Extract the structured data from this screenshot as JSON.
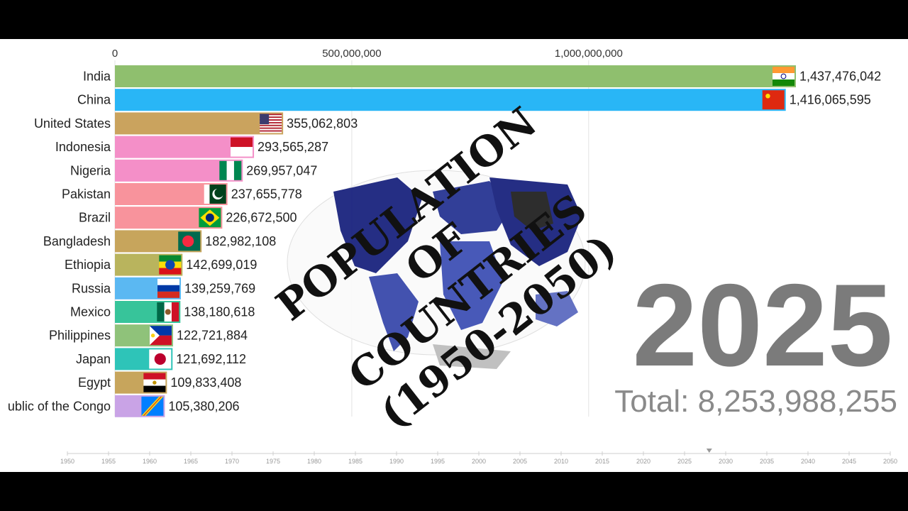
{
  "overlay_title": [
    "POPULATION",
    "OF",
    "COUNTRIES",
    "(1950-2050)"
  ],
  "year": "2025",
  "total_label": "Total: 8,253,988,255",
  "timeline": {
    "years": [
      "1950",
      "1955",
      "1960",
      "1965",
      "1970",
      "1975",
      "1980",
      "1985",
      "1990",
      "1995",
      "2000",
      "2005",
      "2010",
      "2015",
      "2020",
      "2025",
      "2030",
      "2035",
      "2040",
      "2045",
      "2050"
    ],
    "marker_year": 2028
  },
  "chart_data": {
    "type": "bar",
    "orientation": "horizontal",
    "title": "",
    "xlabel": "",
    "ylabel": "",
    "xlim": [
      0,
      1450000000
    ],
    "x_ticks": [
      0,
      500000000,
      1000000000
    ],
    "x_tick_labels": [
      "0",
      "500,000,000",
      "1,000,000,000"
    ],
    "grid": true,
    "categories": [
      "India",
      "China",
      "United States",
      "Indonesia",
      "Nigeria",
      "Pakistan",
      "Brazil",
      "Bangladesh",
      "Ethiopia",
      "Russia",
      "Mexico",
      "Philippines",
      "Japan",
      "Egypt",
      "ublic of the Congo"
    ],
    "values": [
      1437476042,
      1416065595,
      355062803,
      293565287,
      269957047,
      237655778,
      226672500,
      182982108,
      142699019,
      139259769,
      138180618,
      122721884,
      121692112,
      109833408,
      105380206
    ],
    "value_labels": [
      "1,437,476,042",
      "1,416,065,595",
      "355,062,803",
      "293,565,287",
      "269,957,047",
      "237,655,778",
      "226,672,500",
      "182,982,108",
      "142,699,019",
      "139,259,769",
      "138,180,618",
      "122,721,884",
      "121,692,112",
      "109,833,408",
      "105,380,206"
    ],
    "colors": [
      "#8fbf6e",
      "#29b6f6",
      "#caa35e",
      "#f48fc8",
      "#f48fc8",
      "#f8939c",
      "#f8939c",
      "#c7a55c",
      "#b9b45d",
      "#5bb8f2",
      "#37c49a",
      "#8fc27a",
      "#2ec4b8",
      "#c7a55c",
      "#c9a3e6"
    ],
    "flags": [
      "india-flag",
      "china-flag",
      "usa-flag",
      "indonesia-flag",
      "nigeria-flag",
      "pakistan-flag",
      "brazil-flag",
      "bangladesh-flag",
      "ethiopia-flag",
      "russia-flag",
      "mexico-flag",
      "philippines-flag",
      "japan-flag",
      "egypt-flag",
      "drc-flag"
    ]
  }
}
